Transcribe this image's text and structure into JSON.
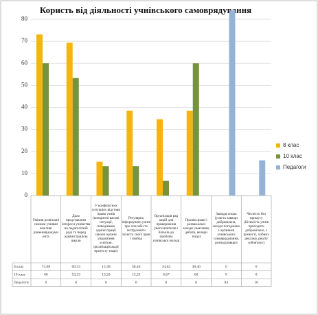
{
  "chart_data": {
    "type": "bar",
    "title": "Користь від діяльності учнівського самоврядування",
    "categories": [
      "Уміння розв'язані самими учнями важливі рішення(докуми ента",
      "Дало представляти інтереси учнівства на педагогічній раді та перед адміністрацією школи",
      "У конфліктних ситуаціях відстояв права учнів (конкретні вагомі ситуації, поведінкою адміністрації школи органи управління освітою, організація акції протесту тощо)",
      "Регулярно інформувати учнів про способи та інструменти захисту своїх прав і свобод",
      "Організація ряд акцій для привернення уваги вчителів і батьків до проблем учнівської молоді",
      "Провів цікаві і розважальні заходи (змагання, дебати, вечори тощо)",
      "Завжди опора (участь завжди добровільна, заходи погоджено з органами учнівського самоврядування, розподілявши)",
      "Чесність без примусу (Бітьмість учнів приходить добровільно, з цінності, хибних реклам), решту зобов'язує)"
    ],
    "series": [
      {
        "name": "8 клас",
        "color": "#f5b50f",
        "values": [
          73.08,
          69.33,
          15.38,
          38.46,
          34.62,
          38.46,
          0,
          0
        ],
        "value_labels": [
          "73,08",
          "69,33",
          "15,38",
          "38,46",
          "34,62",
          "38,46",
          "0",
          "0"
        ]
      },
      {
        "name": "10 клас",
        "color": "#77933c",
        "values": [
          60,
          53.33,
          13.33,
          13.33,
          6.67,
          60,
          0,
          0
        ],
        "value_labels": [
          "60",
          "53,33",
          "13,33",
          "13,33",
          "6,67",
          "60",
          "0",
          "0"
        ]
      },
      {
        "name": "Педагоги",
        "color": "#95b3d7",
        "values": [
          0,
          0,
          0,
          0,
          0,
          0,
          84,
          16
        ]
      }
    ],
    "ylim": [
      0,
      80
    ],
    "yticks": [
      0,
      10,
      20,
      30,
      40,
      50,
      60,
      70,
      80
    ],
    "grid": true,
    "legend": "right"
  }
}
